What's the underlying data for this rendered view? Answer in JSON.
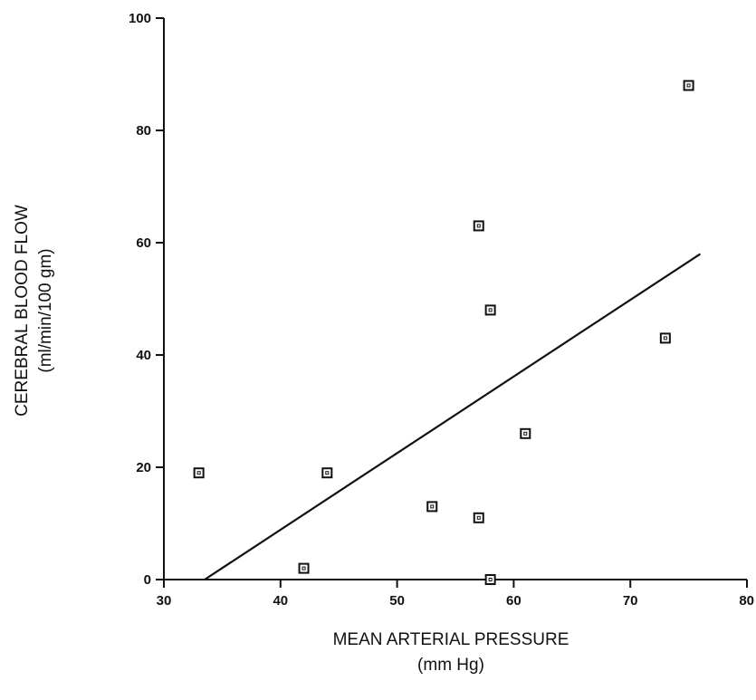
{
  "chart_data": {
    "type": "scatter",
    "title": "",
    "xlabel": "MEAN ARTERIAL PRESSURE",
    "xunit": "(mm Hg)",
    "ylabel": "CEREBRAL BLOOD FLOW",
    "yunit": "(ml/min/100 gm)",
    "xlim": [
      30,
      80
    ],
    "ylim": [
      0,
      100
    ],
    "xticks": [
      30,
      40,
      50,
      60,
      70,
      80
    ],
    "yticks": [
      0,
      20,
      40,
      60,
      80,
      100
    ],
    "grid": false,
    "marker": "open-square",
    "series": [
      {
        "points": [
          {
            "x": 33,
            "y": 19
          },
          {
            "x": 42,
            "y": 2
          },
          {
            "x": 44,
            "y": 19
          },
          {
            "x": 53,
            "y": 13
          },
          {
            "x": 57,
            "y": 63
          },
          {
            "x": 57,
            "y": 11
          },
          {
            "x": 58,
            "y": 48
          },
          {
            "x": 58,
            "y": 0
          },
          {
            "x": 61,
            "y": 26
          },
          {
            "x": 73,
            "y": 43
          },
          {
            "x": 75,
            "y": 88
          }
        ]
      }
    ],
    "regression_line": {
      "x": [
        33.5,
        76
      ],
      "y": [
        0,
        58
      ]
    },
    "colors": {
      "ink": "#111111",
      "background": "#ffffff"
    }
  }
}
